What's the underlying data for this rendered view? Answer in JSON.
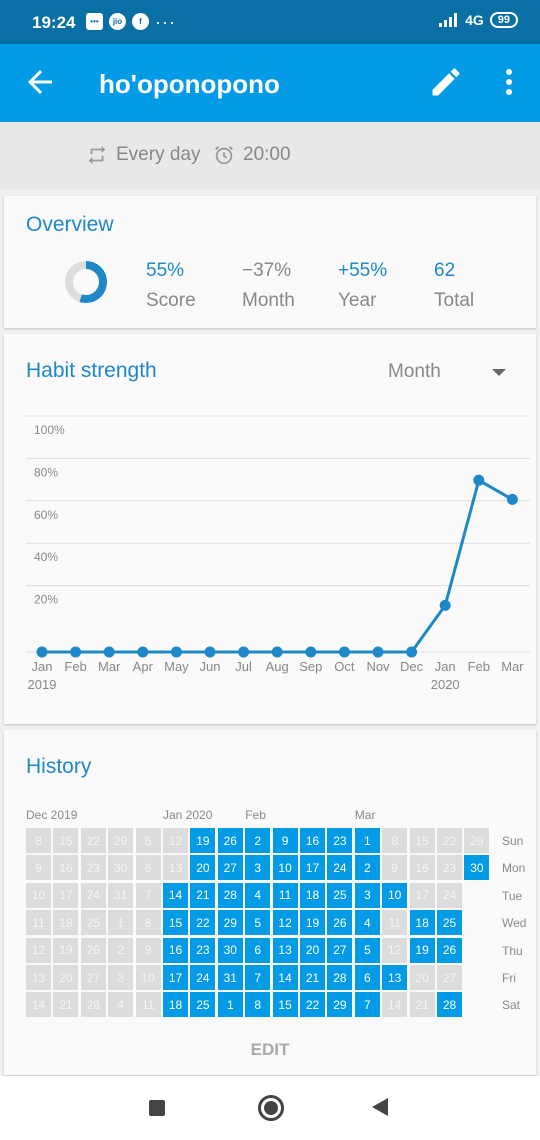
{
  "status_bar": {
    "time": "19:24",
    "network": "4G",
    "battery": "99"
  },
  "header": {
    "title": "ho'oponopono"
  },
  "subheader": {
    "repeat": "Every day",
    "reminder": "20:00"
  },
  "overview": {
    "title": "Overview",
    "score_fraction": 0.55,
    "stats": [
      {
        "value": "55%",
        "label": "Score"
      },
      {
        "value": "−37%",
        "label": "Month"
      },
      {
        "value": "+55%",
        "label": "Year"
      },
      {
        "value": "62",
        "label": "Total"
      }
    ]
  },
  "habit_strength": {
    "title": "Habit strength",
    "period": "Month"
  },
  "chart_data": {
    "type": "line",
    "x": [
      "Jan 2019",
      "Feb",
      "Mar",
      "Apr",
      "May",
      "Jun",
      "Jul",
      "Aug",
      "Sep",
      "Oct",
      "Nov",
      "Dec",
      "Jan 2020",
      "Feb",
      "Mar"
    ],
    "y_ticks": [
      "20%",
      "40%",
      "60%",
      "80%",
      "100%"
    ],
    "ylim": [
      0,
      100
    ],
    "series": [
      {
        "values": [
          0,
          0,
          0,
          0,
          0,
          0,
          0,
          0,
          0,
          0,
          0,
          0,
          22,
          81,
          72
        ]
      }
    ],
    "x_labels": [
      "Jan",
      "Feb",
      "Mar",
      "Apr",
      "May",
      "Jun",
      "Jul",
      "Aug",
      "Sep",
      "Oct",
      "Nov",
      "Dec",
      "Jan",
      "Feb",
      "Mar"
    ],
    "year_labels": [
      "2019",
      "2020"
    ],
    "color": "#1e88c9"
  },
  "history": {
    "title": "History",
    "month_labels": [
      "Dec 2019",
      "Jan 2020",
      "Feb",
      "Mar"
    ],
    "day_labels": [
      "Sun",
      "Mon",
      "Tue",
      "Wed",
      "Thu",
      "Fri",
      "Sat"
    ],
    "edit_label": "EDIT",
    "columns": [
      {
        "days": [
          "8",
          "9",
          "10",
          "11",
          "12",
          "13",
          "14"
        ],
        "on": [
          0,
          0,
          0,
          0,
          0,
          0,
          0
        ]
      },
      {
        "days": [
          "15",
          "16",
          "17",
          "18",
          "19",
          "20",
          "21"
        ],
        "on": [
          0,
          0,
          0,
          0,
          0,
          0,
          0
        ]
      },
      {
        "days": [
          "22",
          "23",
          "24",
          "25",
          "26",
          "27",
          "28"
        ],
        "on": [
          0,
          0,
          0,
          0,
          0,
          0,
          0
        ]
      },
      {
        "days": [
          "29",
          "30",
          "31",
          "1",
          "2",
          "3",
          "4"
        ],
        "on": [
          0,
          0,
          0,
          0,
          0,
          0,
          0
        ]
      },
      {
        "days": [
          "5",
          "6",
          "7",
          "8",
          "9",
          "10",
          "11"
        ],
        "on": [
          0,
          0,
          0,
          0,
          0,
          0,
          0
        ]
      },
      {
        "days": [
          "12",
          "13",
          "14",
          "15",
          "16",
          "17",
          "18"
        ],
        "on": [
          0,
          0,
          1,
          1,
          1,
          1,
          1
        ]
      },
      {
        "days": [
          "19",
          "20",
          "21",
          "22",
          "23",
          "24",
          "25"
        ],
        "on": [
          1,
          1,
          1,
          1,
          1,
          1,
          1
        ]
      },
      {
        "days": [
          "26",
          "27",
          "28",
          "29",
          "30",
          "31",
          "1"
        ],
        "on": [
          1,
          1,
          1,
          1,
          1,
          1,
          1
        ]
      },
      {
        "days": [
          "2",
          "3",
          "4",
          "5",
          "6",
          "7",
          "8"
        ],
        "on": [
          1,
          1,
          1,
          1,
          1,
          1,
          1
        ]
      },
      {
        "days": [
          "9",
          "10",
          "11",
          "12",
          "13",
          "14",
          "15"
        ],
        "on": [
          1,
          1,
          1,
          1,
          1,
          1,
          1
        ]
      },
      {
        "days": [
          "16",
          "17",
          "18",
          "19",
          "20",
          "21",
          "22"
        ],
        "on": [
          1,
          1,
          1,
          1,
          1,
          1,
          1
        ]
      },
      {
        "days": [
          "23",
          "24",
          "25",
          "26",
          "27",
          "28",
          "29"
        ],
        "on": [
          1,
          1,
          1,
          1,
          1,
          1,
          1
        ]
      },
      {
        "days": [
          "1",
          "2",
          "3",
          "4",
          "5",
          "6",
          "7"
        ],
        "on": [
          1,
          1,
          1,
          1,
          1,
          1,
          1
        ]
      },
      {
        "days": [
          "8",
          "9",
          "10",
          "11",
          "12",
          "13",
          "14"
        ],
        "on": [
          0,
          0,
          1,
          0,
          0,
          1,
          0
        ]
      },
      {
        "days": [
          "15",
          "16",
          "17",
          "18",
          "19",
          "20",
          "21"
        ],
        "on": [
          0,
          0,
          0,
          1,
          1,
          0,
          0
        ]
      },
      {
        "days": [
          "22",
          "23",
          "24",
          "25",
          "26",
          "27",
          "28"
        ],
        "on": [
          0,
          0,
          0,
          1,
          1,
          0,
          1
        ]
      },
      {
        "days": [
          "29",
          "30"
        ],
        "on": [
          0,
          1
        ]
      }
    ]
  },
  "colors": {
    "primary": "#039be5",
    "accent_text": "#1e88c9",
    "statusbar": "#0a6fa5"
  }
}
